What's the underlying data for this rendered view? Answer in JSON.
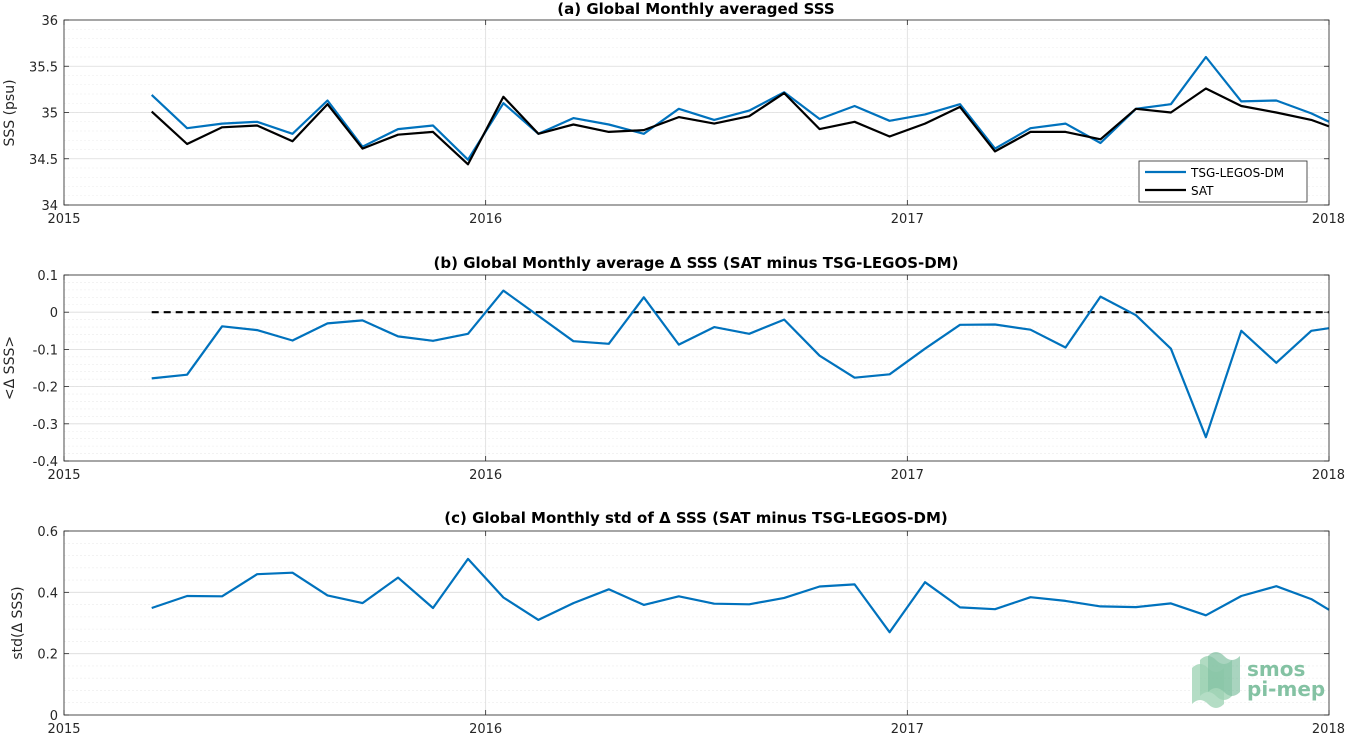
{
  "chart_data": [
    {
      "type": "line",
      "title": "(a) Global Monthly averaged SSS",
      "ylabel": "SSS (psu)",
      "xlabel": "",
      "x": [
        2015.208,
        2015.292,
        2015.375,
        2015.458,
        2015.542,
        2015.625,
        2015.708,
        2015.792,
        2015.875,
        2015.958,
        2016.042,
        2016.125,
        2016.208,
        2016.292,
        2016.375,
        2016.458,
        2016.542,
        2016.625,
        2016.708,
        2016.792,
        2016.875,
        2016.958,
        2017.042,
        2017.125,
        2017.208,
        2017.292,
        2017.375,
        2017.458,
        2017.542,
        2017.625,
        2017.708,
        2017.792,
        2017.875,
        2017.958,
        2018.0
      ],
      "xlim": [
        2015,
        2018
      ],
      "xticks": [
        2015,
        2016,
        2017,
        2018
      ],
      "xticklabels": [
        "2015",
        "2016",
        "2017",
        "2018"
      ],
      "ylim": [
        34,
        36
      ],
      "yticks": [
        34,
        34.5,
        35,
        35.5,
        36
      ],
      "yticklabels": [
        "34",
        "34.5",
        "35",
        "35.5",
        "36"
      ],
      "grid": true,
      "legend_position": "bottom-right",
      "series": [
        {
          "name": "TSG-LEGOS-DM",
          "color": "#0072bd",
          "values": [
            35.19,
            34.83,
            34.88,
            34.9,
            34.77,
            35.13,
            34.63,
            34.82,
            34.86,
            34.49,
            35.1,
            34.77,
            34.94,
            34.87,
            34.77,
            35.04,
            34.92,
            35.02,
            35.22,
            34.93,
            35.07,
            34.91,
            34.98,
            35.09,
            34.61,
            34.83,
            34.88,
            34.67,
            35.04,
            35.09,
            35.6,
            35.12,
            35.13,
            34.99,
            34.9
          ]
        },
        {
          "name": "SAT",
          "color": "#000000",
          "values": [
            35.01,
            34.66,
            34.84,
            34.86,
            34.69,
            35.09,
            34.61,
            34.76,
            34.79,
            34.44,
            35.17,
            34.77,
            34.87,
            34.79,
            34.81,
            34.95,
            34.88,
            34.96,
            35.21,
            34.82,
            34.9,
            34.74,
            34.88,
            35.06,
            34.58,
            34.79,
            34.79,
            34.71,
            35.04,
            35.0,
            35.26,
            35.07,
            35.0,
            34.92,
            34.85
          ]
        }
      ]
    },
    {
      "type": "line",
      "title": "(b) Global Monthly average Δ SSS (SAT minus TSG-LEGOS-DM)",
      "ylabel": "<Δ SSS>",
      "xlabel": "",
      "x": [
        2015.208,
        2015.292,
        2015.375,
        2015.458,
        2015.542,
        2015.625,
        2015.708,
        2015.792,
        2015.875,
        2015.958,
        2016.042,
        2016.125,
        2016.208,
        2016.292,
        2016.375,
        2016.458,
        2016.542,
        2016.625,
        2016.708,
        2016.792,
        2016.875,
        2016.958,
        2017.042,
        2017.125,
        2017.208,
        2017.292,
        2017.375,
        2017.458,
        2017.542,
        2017.625,
        2017.708,
        2017.792,
        2017.875,
        2017.958,
        2018.0
      ],
      "xlim": [
        2015,
        2018
      ],
      "xticks": [
        2015,
        2016,
        2017,
        2018
      ],
      "xticklabels": [
        "2015",
        "2016",
        "2017",
        "2018"
      ],
      "ylim": [
        -0.4,
        0.1
      ],
      "yticks": [
        -0.4,
        -0.3,
        -0.2,
        -0.1,
        0,
        0.1
      ],
      "yticklabels": [
        "-0.4",
        "-0.3",
        "-0.2",
        "-0.1",
        "0",
        "0.1"
      ],
      "grid": true,
      "reference_line": {
        "y": 0,
        "xrange": [
          2015.208,
          2018.0
        ],
        "style": "dashed",
        "color": "#000000"
      },
      "series": [
        {
          "color": "#0072bd",
          "values": [
            -0.178,
            -0.168,
            -0.038,
            -0.048,
            -0.076,
            -0.03,
            -0.022,
            -0.065,
            -0.077,
            -0.058,
            0.058,
            -0.01,
            -0.078,
            -0.085,
            0.04,
            -0.087,
            -0.04,
            -0.058,
            -0.02,
            -0.117,
            -0.176,
            -0.167,
            -0.098,
            -0.034,
            -0.033,
            -0.047,
            -0.095,
            0.042,
            -0.008,
            -0.098,
            -0.336,
            -0.05,
            -0.136,
            -0.05,
            -0.043
          ]
        }
      ]
    },
    {
      "type": "line",
      "title": "(c) Global Monthly std of Δ SSS (SAT minus TSG-LEGOS-DM)",
      "ylabel": "std(Δ SSS)",
      "xlabel": "",
      "x": [
        2015.208,
        2015.292,
        2015.375,
        2015.458,
        2015.542,
        2015.625,
        2015.708,
        2015.792,
        2015.875,
        2015.958,
        2016.042,
        2016.125,
        2016.208,
        2016.292,
        2016.375,
        2016.458,
        2016.542,
        2016.625,
        2016.708,
        2016.792,
        2016.875,
        2016.958,
        2017.042,
        2017.125,
        2017.208,
        2017.292,
        2017.375,
        2017.458,
        2017.542,
        2017.625,
        2017.708,
        2017.792,
        2017.875,
        2017.958,
        2018.0
      ],
      "xlim": [
        2015,
        2018
      ],
      "xticks": [
        2015,
        2016,
        2017,
        2018
      ],
      "xticklabels": [
        "2015",
        "2016",
        "2017",
        "2018"
      ],
      "ylim": [
        0,
        0.6
      ],
      "yticks": [
        0,
        0.2,
        0.4,
        0.6
      ],
      "yticklabels": [
        "0",
        "0.2",
        "0.4",
        "0.6"
      ],
      "grid": true,
      "series": [
        {
          "color": "#0072bd",
          "values": [
            0.349,
            0.388,
            0.387,
            0.459,
            0.464,
            0.39,
            0.365,
            0.448,
            0.349,
            0.509,
            0.383,
            0.31,
            0.365,
            0.41,
            0.359,
            0.387,
            0.363,
            0.361,
            0.382,
            0.419,
            0.426,
            0.27,
            0.433,
            0.351,
            0.345,
            0.384,
            0.372,
            0.354,
            0.352,
            0.364,
            0.325,
            0.388,
            0.42,
            0.378,
            0.343
          ]
        }
      ]
    }
  ],
  "logo": {
    "line1": "smos",
    "line2": "pi-mep"
  }
}
